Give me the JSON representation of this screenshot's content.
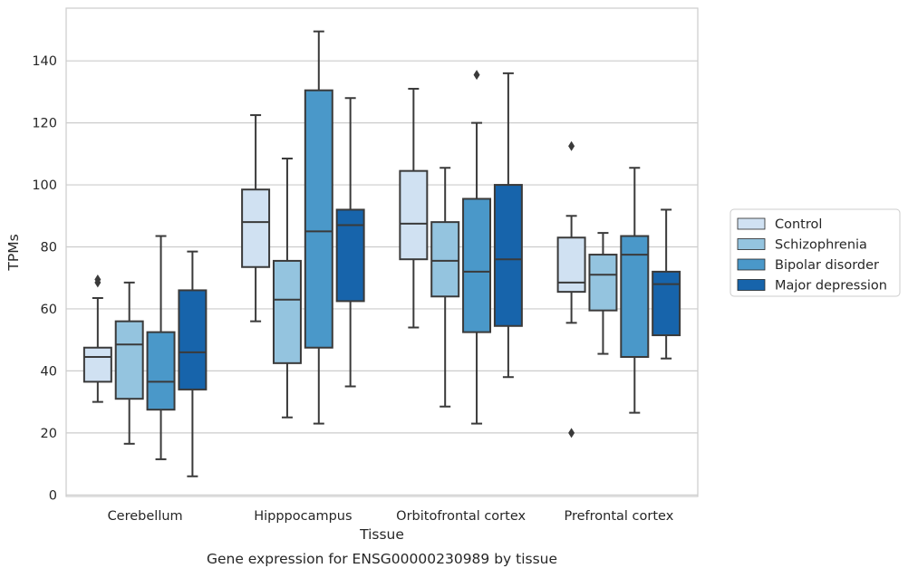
{
  "chart_data": {
    "type": "box",
    "title": "Gene expression for ENSG00000230989 by tissue",
    "xlabel": "Tissue",
    "ylabel": "TPMs",
    "ylim": [
      -0.5,
      157
    ],
    "yticks": [
      0,
      20,
      40,
      60,
      80,
      100,
      120,
      140
    ],
    "grid": "horizontal",
    "legend_position": "right",
    "categories": [
      "Cerebellum",
      "Hipppocampus",
      "Orbitofrontal cortex",
      "Prefrontal cortex"
    ],
    "series": [
      {
        "name": "Control",
        "color": "#d0e1f2",
        "boxes": [
          {
            "whislo": 30,
            "q1": 36.5,
            "med": 44.5,
            "q3": 47.5,
            "whishi": 63.5,
            "fliers": [
              68.5,
              69.5
            ]
          },
          {
            "whislo": 56,
            "q1": 73.5,
            "med": 88,
            "q3": 98.5,
            "whishi": 122.5,
            "fliers": []
          },
          {
            "whislo": 54,
            "q1": 76,
            "med": 87.5,
            "q3": 104.5,
            "whishi": 131,
            "fliers": []
          },
          {
            "whislo": 55.5,
            "q1": 65.5,
            "med": 68.5,
            "q3": 83,
            "whishi": 90,
            "fliers": [
              20,
              112.5
            ]
          }
        ]
      },
      {
        "name": "Schizophrenia",
        "color": "#94c4df",
        "boxes": [
          {
            "whislo": 16.5,
            "q1": 31,
            "med": 48.5,
            "q3": 56,
            "whishi": 68.5,
            "fliers": []
          },
          {
            "whislo": 25,
            "q1": 42.5,
            "med": 63,
            "q3": 75.5,
            "whishi": 108.5,
            "fliers": []
          },
          {
            "whislo": 28.5,
            "q1": 64,
            "med": 75.5,
            "q3": 88,
            "whishi": 105.5,
            "fliers": []
          },
          {
            "whislo": 45.5,
            "q1": 59.5,
            "med": 71,
            "q3": 77.5,
            "whishi": 84.5,
            "fliers": []
          }
        ]
      },
      {
        "name": "Bipolar disorder",
        "color": "#4a98c9",
        "boxes": [
          {
            "whislo": 11.5,
            "q1": 27.5,
            "med": 36.5,
            "q3": 52.5,
            "whishi": 83.5,
            "fliers": []
          },
          {
            "whislo": 23,
            "q1": 47.5,
            "med": 85,
            "q3": 130.5,
            "whishi": 149.5,
            "fliers": []
          },
          {
            "whislo": 23,
            "q1": 52.5,
            "med": 72,
            "q3": 95.5,
            "whishi": 120,
            "fliers": [
              135.5
            ]
          },
          {
            "whislo": 26.5,
            "q1": 44.5,
            "med": 77.5,
            "q3": 83.5,
            "whishi": 105.5,
            "fliers": []
          }
        ]
      },
      {
        "name": "Major depression",
        "color": "#1764ab",
        "boxes": [
          {
            "whislo": 6,
            "q1": 34,
            "med": 46,
            "q3": 66,
            "whishi": 78.5,
            "fliers": []
          },
          {
            "whislo": 35,
            "q1": 62.5,
            "med": 87,
            "q3": 92,
            "whishi": 128,
            "fliers": []
          },
          {
            "whislo": 38,
            "q1": 54.5,
            "med": 76,
            "q3": 100,
            "whishi": 136,
            "fliers": []
          },
          {
            "whislo": 44,
            "q1": 51.5,
            "med": 68,
            "q3": 72,
            "whishi": 92,
            "fliers": []
          }
        ]
      }
    ]
  }
}
